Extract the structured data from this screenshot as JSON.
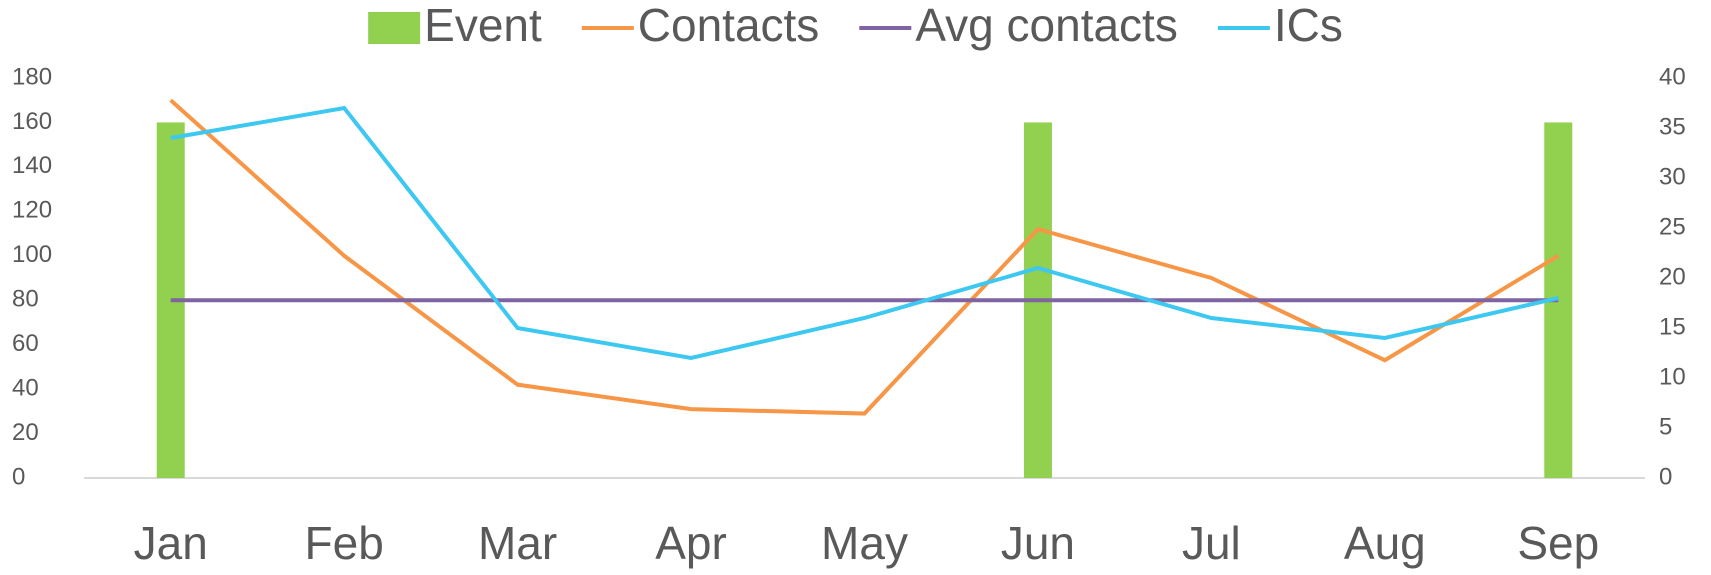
{
  "chart_data": {
    "type": "bar",
    "categories": [
      "Jan",
      "Feb",
      "Mar",
      "Apr",
      "May",
      "Jun",
      "Jul",
      "Aug",
      "Sep"
    ],
    "series": [
      {
        "name": "Event",
        "type": "bar",
        "color": "#92d050",
        "values": [
          160,
          null,
          null,
          null,
          null,
          160,
          null,
          null,
          160
        ]
      },
      {
        "name": "Contacts",
        "type": "line",
        "color": "#f79646",
        "values": [
          170,
          100,
          42,
          31,
          29,
          112,
          90,
          53,
          100
        ]
      },
      {
        "name": "Avg contacts",
        "type": "line",
        "color": "#8064a2",
        "values": [
          80,
          80,
          80,
          80,
          80,
          80,
          80,
          80,
          80
        ]
      },
      {
        "name": "ICs",
        "type": "line",
        "axis": "y2",
        "color": "#3cc8f0",
        "values": [
          34,
          37,
          15,
          12,
          16,
          21,
          16,
          14,
          18
        ]
      }
    ],
    "ylim": [
      0,
      180
    ],
    "yticks": [
      0,
      20,
      40,
      60,
      80,
      100,
      120,
      140,
      160,
      180
    ],
    "y2lim": [
      0,
      40
    ],
    "y2ticks": [
      0,
      5,
      10,
      15,
      20,
      25,
      30,
      35,
      40
    ],
    "legend": "top",
    "grid": false
  }
}
